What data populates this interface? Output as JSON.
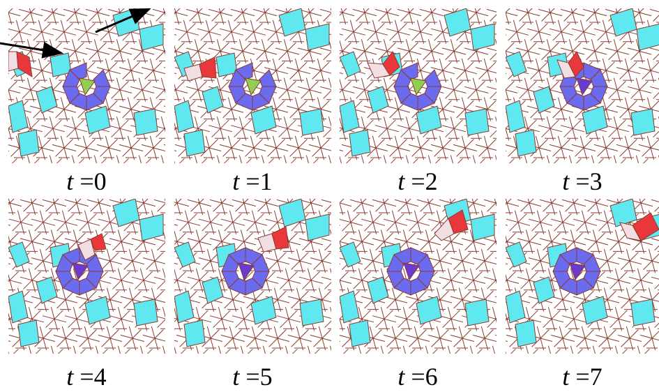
{
  "figure": {
    "panels": [
      {
        "t_var": "t",
        "eq": " =",
        "t_val": "0"
      },
      {
        "t_var": "t",
        "eq": " =",
        "t_val": "1"
      },
      {
        "t_var": "t",
        "eq": " =",
        "t_val": "2"
      },
      {
        "t_var": "t",
        "eq": " =",
        "t_val": "3"
      },
      {
        "t_var": "t",
        "eq": " =",
        "t_val": "4"
      },
      {
        "t_var": "t",
        "eq": " =",
        "t_val": "5"
      },
      {
        "t_var": "t",
        "eq": " =",
        "t_val": "6"
      },
      {
        "t_var": "t",
        "eq": " =",
        "t_val": "7"
      }
    ],
    "colors": {
      "edge": "#8b3a2e",
      "cyan_tile": "#5fe8ef",
      "blue_tile": "#6b6bf0",
      "purple_tile": "#6a3bd0",
      "green_tile": "#8ed052",
      "red_tile": "#e8383c",
      "pink_tile": "#f1dfe3",
      "arrow": "#000000"
    }
  }
}
